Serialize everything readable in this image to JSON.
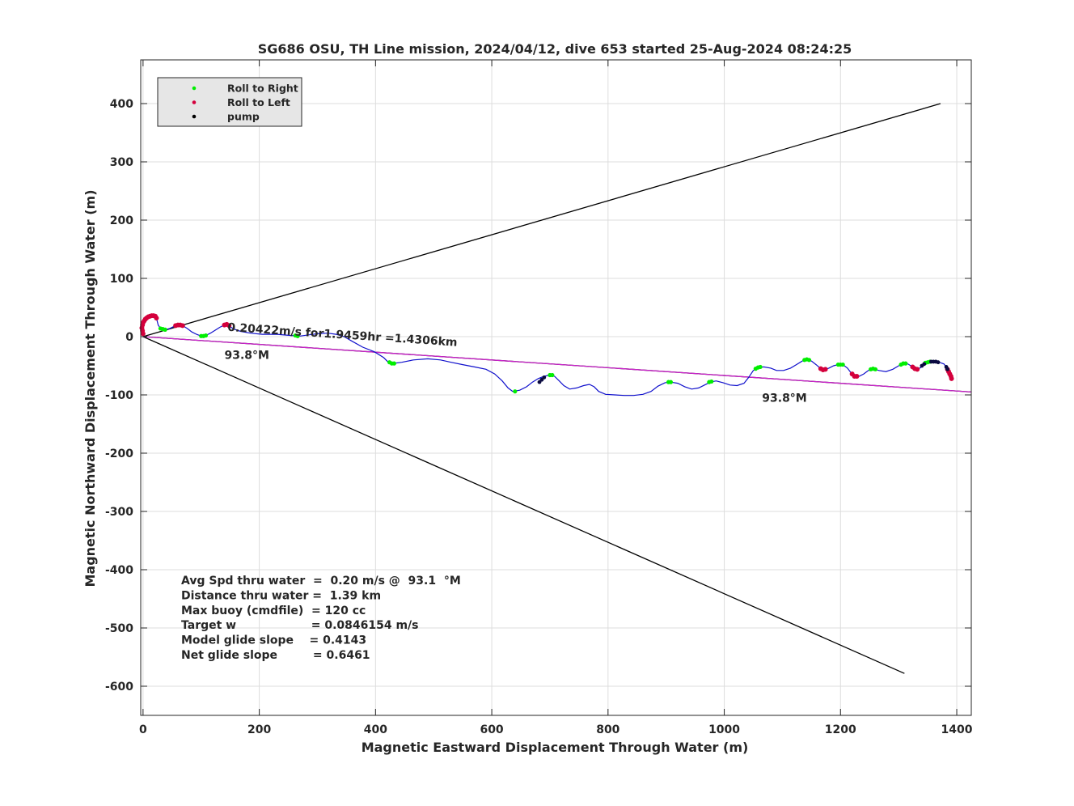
{
  "chart_data": {
    "type": "scatter",
    "title": "SG686 OSU, TH Line mission, 2024/04/12, dive 653 started 25-Aug-2024 08:24:25",
    "xlabel": "Magnetic Eastward Displacement Through Water (m)",
    "ylabel": "Magnetic Northward Displacement Through Water (m)",
    "xlim": [
      -4,
      1425
    ],
    "ylim": [
      -650,
      475
    ],
    "xticks": [
      0,
      200,
      400,
      600,
      800,
      1000,
      1200,
      1400
    ],
    "yticks": [
      -600,
      -500,
      -400,
      -300,
      -200,
      -100,
      0,
      100,
      200,
      300,
      400
    ],
    "grid": true,
    "legend_position": "top-left",
    "legend": [
      {
        "label": "Roll to Right",
        "color": "#00ee00"
      },
      {
        "label": "Roll to Left",
        "color": "#d4003c"
      },
      {
        "label": "pump",
        "color": "#000000"
      }
    ],
    "colors": {
      "track": "#1010cc",
      "heading_line": "#cc22cc",
      "cone": "#000000",
      "grid": "#dddddd"
    },
    "lines": {
      "cone_upper": [
        [
          0,
          0
        ],
        [
          1372,
          400
        ]
      ],
      "cone_lower": [
        [
          0,
          0
        ],
        [
          1310,
          -578
        ]
      ],
      "heading": [
        [
          0,
          0
        ],
        [
          1425,
          -95
        ]
      ],
      "heading_black": [
        [
          0,
          0
        ],
        [
          1425,
          -95
        ]
      ]
    },
    "track": [
      [
        0,
        3
      ],
      [
        -2,
        10
      ],
      [
        -1,
        20
      ],
      [
        2,
        27
      ],
      [
        6,
        32
      ],
      [
        12,
        35
      ],
      [
        18,
        36
      ],
      [
        22,
        34
      ],
      [
        24,
        28
      ],
      [
        26,
        20
      ],
      [
        30,
        14
      ],
      [
        38,
        12
      ],
      [
        46,
        14
      ],
      [
        54,
        18
      ],
      [
        60,
        20
      ],
      [
        68,
        19
      ],
      [
        76,
        14
      ],
      [
        84,
        8
      ],
      [
        92,
        4
      ],
      [
        100,
        1
      ],
      [
        108,
        2
      ],
      [
        116,
        6
      ],
      [
        124,
        11
      ],
      [
        132,
        16
      ],
      [
        140,
        20
      ],
      [
        146,
        21
      ],
      [
        150,
        17
      ],
      [
        156,
        13
      ],
      [
        168,
        9
      ],
      [
        185,
        6
      ],
      [
        205,
        4
      ],
      [
        230,
        4
      ],
      [
        255,
        2
      ],
      [
        270,
        1
      ],
      [
        285,
        3
      ],
      [
        300,
        5
      ],
      [
        318,
        6
      ],
      [
        332,
        4
      ],
      [
        346,
        0
      ],
      [
        360,
        -8
      ],
      [
        378,
        -18
      ],
      [
        398,
        -26
      ],
      [
        414,
        -36
      ],
      [
        422,
        -44
      ],
      [
        430,
        -46
      ],
      [
        445,
        -44
      ],
      [
        465,
        -40
      ],
      [
        490,
        -38
      ],
      [
        512,
        -40
      ],
      [
        530,
        -44
      ],
      [
        550,
        -48
      ],
      [
        570,
        -52
      ],
      [
        590,
        -56
      ],
      [
        605,
        -64
      ],
      [
        618,
        -76
      ],
      [
        628,
        -88
      ],
      [
        636,
        -94
      ],
      [
        648,
        -92
      ],
      [
        660,
        -86
      ],
      [
        670,
        -78
      ],
      [
        680,
        -72
      ],
      [
        690,
        -68
      ],
      [
        700,
        -66
      ],
      [
        708,
        -68
      ],
      [
        716,
        -76
      ],
      [
        724,
        -84
      ],
      [
        734,
        -90
      ],
      [
        746,
        -88
      ],
      [
        758,
        -84
      ],
      [
        768,
        -82
      ],
      [
        776,
        -86
      ],
      [
        784,
        -94
      ],
      [
        796,
        -99
      ],
      [
        812,
        -100
      ],
      [
        828,
        -101
      ],
      [
        844,
        -101
      ],
      [
        860,
        -99
      ],
      [
        874,
        -94
      ],
      [
        886,
        -85
      ],
      [
        898,
        -79
      ],
      [
        908,
        -78
      ],
      [
        920,
        -80
      ],
      [
        932,
        -86
      ],
      [
        944,
        -90
      ],
      [
        956,
        -88
      ],
      [
        966,
        -83
      ],
      [
        976,
        -78
      ],
      [
        986,
        -76
      ],
      [
        998,
        -79
      ],
      [
        1010,
        -83
      ],
      [
        1022,
        -84
      ],
      [
        1034,
        -80
      ],
      [
        1042,
        -70
      ],
      [
        1050,
        -58
      ],
      [
        1058,
        -53
      ],
      [
        1068,
        -52
      ],
      [
        1080,
        -54
      ],
      [
        1090,
        -58
      ],
      [
        1102,
        -58
      ],
      [
        1114,
        -54
      ],
      [
        1124,
        -48
      ],
      [
        1134,
        -42
      ],
      [
        1142,
        -39
      ],
      [
        1150,
        -42
      ],
      [
        1158,
        -48
      ],
      [
        1166,
        -55
      ],
      [
        1172,
        -57
      ],
      [
        1180,
        -54
      ],
      [
        1188,
        -50
      ],
      [
        1196,
        -48
      ],
      [
        1204,
        -48
      ],
      [
        1212,
        -54
      ],
      [
        1218,
        -62
      ],
      [
        1224,
        -68
      ],
      [
        1232,
        -68
      ],
      [
        1240,
        -64
      ],
      [
        1248,
        -58
      ],
      [
        1256,
        -55
      ],
      [
        1266,
        -58
      ],
      [
        1278,
        -60
      ],
      [
        1290,
        -56
      ],
      [
        1300,
        -50
      ],
      [
        1308,
        -46
      ],
      [
        1316,
        -47
      ],
      [
        1324,
        -52
      ],
      [
        1332,
        -56
      ],
      [
        1338,
        -53
      ],
      [
        1344,
        -47
      ],
      [
        1350,
        -44
      ],
      [
        1360,
        -43
      ],
      [
        1370,
        -44
      ],
      [
        1378,
        -47
      ],
      [
        1384,
        -55
      ],
      [
        1388,
        -64
      ],
      [
        1391,
        -72
      ]
    ],
    "roll_right": [
      [
        30,
        14
      ],
      [
        34,
        13
      ],
      [
        38,
        12
      ],
      [
        100,
        1
      ],
      [
        104,
        1
      ],
      [
        108,
        2
      ],
      [
        262,
        2
      ],
      [
        266,
        1
      ],
      [
        424,
        -44
      ],
      [
        428,
        -46
      ],
      [
        432,
        -46
      ],
      [
        640,
        -94
      ],
      [
        700,
        -66
      ],
      [
        704,
        -66
      ],
      [
        904,
        -78
      ],
      [
        908,
        -78
      ],
      [
        974,
        -78
      ],
      [
        978,
        -77
      ],
      [
        1054,
        -55
      ],
      [
        1058,
        -53
      ],
      [
        1062,
        -52
      ],
      [
        1138,
        -40
      ],
      [
        1142,
        -39
      ],
      [
        1146,
        -40
      ],
      [
        1196,
        -48
      ],
      [
        1200,
        -48
      ],
      [
        1204,
        -48
      ],
      [
        1252,
        -56
      ],
      [
        1256,
        -55
      ],
      [
        1260,
        -56
      ],
      [
        1304,
        -48
      ],
      [
        1308,
        -46
      ],
      [
        1312,
        -46
      ],
      [
        1346,
        -45
      ],
      [
        1350,
        -44
      ],
      [
        1354,
        -43
      ]
    ],
    "roll_left": [
      [
        0,
        5
      ],
      [
        -1,
        10
      ],
      [
        -2,
        15
      ],
      [
        -1,
        20
      ],
      [
        0,
        24
      ],
      [
        2,
        27
      ],
      [
        4,
        30
      ],
      [
        6,
        32
      ],
      [
        9,
        34
      ],
      [
        12,
        35
      ],
      [
        15,
        36
      ],
      [
        18,
        36
      ],
      [
        21,
        35
      ],
      [
        23,
        32
      ],
      [
        56,
        19
      ],
      [
        60,
        20
      ],
      [
        64,
        20
      ],
      [
        68,
        19
      ],
      [
        140,
        20
      ],
      [
        144,
        21
      ],
      [
        148,
        19
      ],
      [
        1166,
        -55
      ],
      [
        1170,
        -57
      ],
      [
        1174,
        -56
      ],
      [
        1220,
        -64
      ],
      [
        1224,
        -68
      ],
      [
        1228,
        -68
      ],
      [
        1324,
        -52
      ],
      [
        1328,
        -55
      ],
      [
        1332,
        -56
      ],
      [
        1384,
        -56
      ],
      [
        1386,
        -60
      ],
      [
        1388,
        -64
      ],
      [
        1390,
        -68
      ],
      [
        1391,
        -72
      ]
    ],
    "pump": [
      [
        682,
        -78
      ],
      [
        686,
        -74
      ],
      [
        690,
        -70
      ],
      [
        1340,
        -50
      ],
      [
        1344,
        -47
      ],
      [
        1356,
        -43
      ],
      [
        1360,
        -43
      ],
      [
        1364,
        -43
      ],
      [
        1368,
        -44
      ],
      [
        1382,
        -52
      ],
      [
        1384,
        -56
      ]
    ],
    "annotations": [
      {
        "text": "0.20422m/s for1.9459hr =1.4306km",
        "x": 145,
        "y": 10,
        "angle_deg": -3.8
      },
      {
        "text": "93.8°M",
        "x": 140,
        "y": -38
      },
      {
        "text": "93.8°M",
        "x": 1065,
        "y": -112
      }
    ],
    "stats": [
      "Avg Spd thru water  =  0.20 m/s @  93.1  °M",
      "Distance thru water =  1.39 km",
      "Max buoy (cmdfile)  = 120 cc",
      "Target w                   = 0.0846154 m/s",
      "Model glide slope    = 0.4143",
      "Net glide slope         = 0.6461"
    ]
  }
}
